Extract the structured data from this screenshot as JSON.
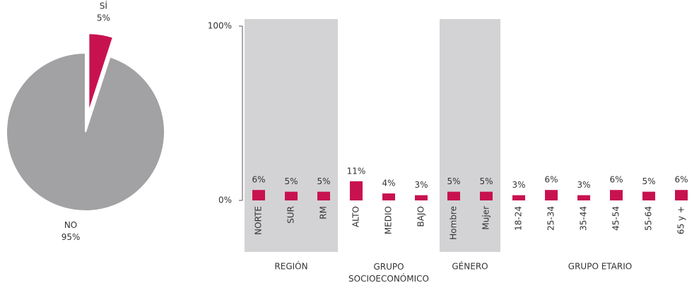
{
  "chart_data": [
    {
      "type": "pie",
      "categories": [
        "SÍ",
        "NO"
      ],
      "values": [
        5,
        95
      ],
      "value_labels": [
        "5%",
        "95%"
      ],
      "colors": [
        "#c8124f",
        "#a2a2a5"
      ],
      "exploded": [
        true,
        false
      ]
    },
    {
      "type": "bar",
      "categories": [
        "NORTE",
        "SUR",
        "RM",
        "ALTO",
        "MEDIO",
        "BAJO",
        "Hombre",
        "Mujer",
        "18-24",
        "25-34",
        "35-44",
        "45-54",
        "55-64",
        "65 y +"
      ],
      "values": [
        6,
        5,
        5,
        11,
        4,
        3,
        5,
        5,
        3,
        6,
        3,
        6,
        5,
        6
      ],
      "value_labels": [
        "6%",
        "5%",
        "5%",
        "11%",
        "4%",
        "3%",
        "5%",
        "5%",
        "3%",
        "6%",
        "3%",
        "6%",
        "5%",
        "6%"
      ],
      "color": "#c8124f",
      "ylim": [
        0,
        100
      ],
      "yticks": [
        {
          "value": 0,
          "label": "0%"
        },
        {
          "value": 100,
          "label": "100%"
        }
      ],
      "groups": [
        {
          "label": "REGIÓN",
          "count": 3,
          "shaded": true
        },
        {
          "label": "GRUPO SOCIOECONÓMICO",
          "count": 3,
          "shaded": false
        },
        {
          "label": "GÉNERO",
          "count": 2,
          "shaded": true
        },
        {
          "label": "GRUPO ETARIO",
          "count": 6,
          "shaded": false
        }
      ],
      "shade_color": "#d3d3d5"
    }
  ]
}
